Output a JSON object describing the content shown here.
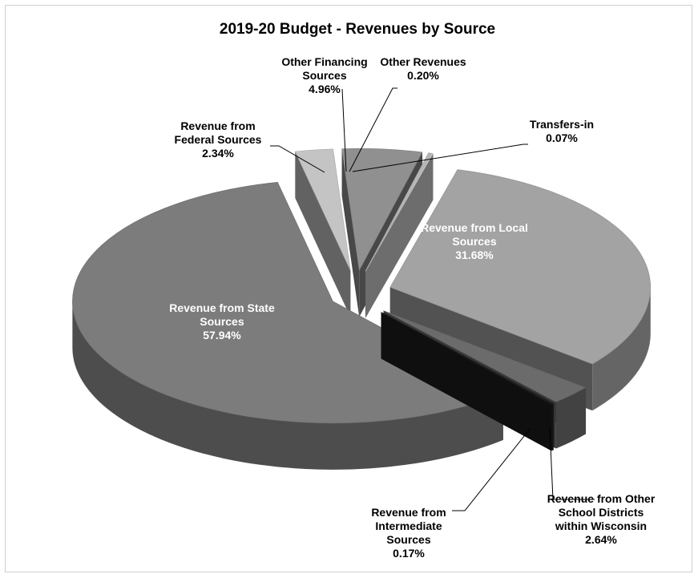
{
  "chart_data": {
    "type": "pie",
    "title": "2019-20 Budget - Revenues by Source",
    "slices": [
      {
        "key": "local",
        "label_lines": [
          "Revenue from Local",
          "Sources",
          "31.68%"
        ],
        "value": 31.68,
        "color": "#a3a3a3"
      },
      {
        "key": "other_districts",
        "label_lines": [
          "Revenue from Other",
          "School Districts",
          "within Wisconsin",
          "2.64%"
        ],
        "value": 2.64,
        "color": "#6b6b6b"
      },
      {
        "key": "intermediate",
        "label_lines": [
          "Revenue from",
          "Intermediate",
          "Sources",
          "0.17%"
        ],
        "value": 0.17,
        "color": "#1e1e1e"
      },
      {
        "key": "state",
        "label_lines": [
          "Revenue from State",
          "Sources",
          "57.94%"
        ],
        "value": 57.94,
        "color": "#7c7c7c"
      },
      {
        "key": "federal",
        "label_lines": [
          "Revenue from",
          "Federal Sources",
          "2.34%"
        ],
        "value": 2.34,
        "color": "#c4c4c4"
      },
      {
        "key": "other_financing",
        "label_lines": [
          "Other Financing",
          "Sources",
          "4.96%"
        ],
        "value": 4.96,
        "color": "#909090"
      },
      {
        "key": "other_revenues",
        "label_lines": [
          "Other Revenues",
          "0.20%"
        ],
        "value": 0.2,
        "color": "#b8b8b8"
      },
      {
        "key": "transfers_in",
        "label_lines": [
          "Transfers-in",
          "0.07%"
        ],
        "value": 0.07,
        "color": "#d9d9d9"
      }
    ]
  }
}
